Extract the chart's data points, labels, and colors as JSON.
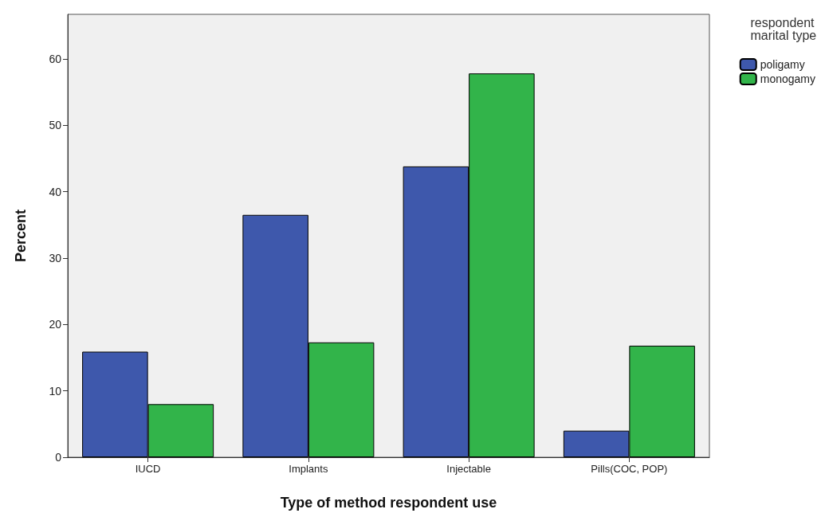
{
  "chart_data": {
    "type": "bar",
    "xlabel": "Type of method respondent use",
    "ylabel": "Percent",
    "legend_title": "respondent marital type",
    "categories": [
      "IUCD",
      "Implants",
      "Injectable",
      "Pills(COC, POP)"
    ],
    "series": [
      {
        "name": "poligamy",
        "color": "#3e58ac",
        "values": [
          15.9,
          36.5,
          43.8,
          4.0
        ]
      },
      {
        "name": "monogamy",
        "color": "#32b44a",
        "values": [
          8.0,
          17.3,
          57.8,
          16.8
        ]
      }
    ],
    "ylim": [
      0,
      66.7
    ],
    "yticks": [
      0,
      10,
      20,
      30,
      40,
      50,
      60
    ],
    "grid": false,
    "legend": "top right"
  }
}
